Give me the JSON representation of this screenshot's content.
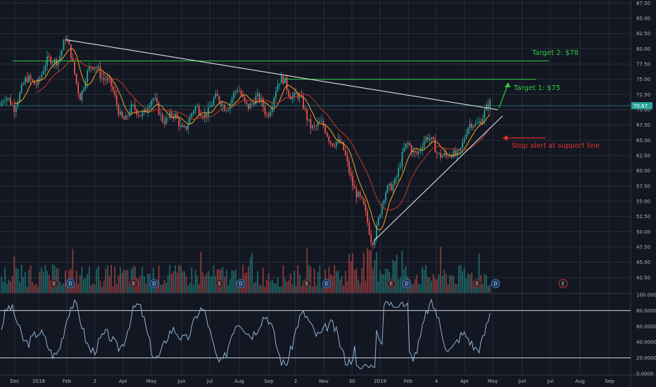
{
  "chart_data": {
    "type": "candlestick",
    "price_axis": {
      "range": [
        40.0,
        88.0
      ],
      "ticks": [
        "87.50",
        "85.00",
        "82.50",
        "80.00",
        "77.50",
        "75.00",
        "72.50",
        "70.00",
        "67.50",
        "65.00",
        "62.50",
        "60.00",
        "57.50",
        "55.00",
        "52.50",
        "50.00",
        "47.50",
        "45.00",
        "42.50"
      ],
      "last_price_label": "70.67",
      "last_price": 70.67
    },
    "x_axis": {
      "labels": [
        "Dec",
        "2018",
        "Feb",
        "2",
        "Apr",
        "May",
        "Jun",
        "Jul",
        "Aug",
        "Sep",
        "2",
        "Nov",
        "30",
        "2019",
        "Feb",
        "4",
        "Apr",
        "May",
        "Jun",
        "Jul",
        "Aug",
        "Sep"
      ]
    },
    "price_series": {
      "name": "",
      "x": [
        "2017-12",
        "2018-01-25",
        "2018-02-10",
        "2018-03-01",
        "2018-04-01",
        "2018-05-01",
        "2018-06-01",
        "2018-07-01",
        "2018-08-01",
        "2018-09-01",
        "2018-09-20",
        "2018-10-05",
        "2018-10-25",
        "2018-11-15",
        "2018-12-01",
        "2018-12-24",
        "2019-01-10",
        "2019-02-01",
        "2019-03-01",
        "2019-03-15",
        "2019-04-01",
        "2019-04-20",
        "2019-05-01"
      ],
      "close": [
        71.5,
        81.0,
        72.5,
        78.0,
        68.5,
        70.5,
        68.0,
        70.0,
        73.0,
        69.5,
        75.0,
        72.0,
        67.0,
        64.5,
        60.0,
        49.5,
        56.0,
        63.5,
        65.5,
        61.0,
        64.0,
        69.5,
        70.67
      ]
    },
    "indicator": {
      "axis_ticks": [
        "100.0000",
        "80.0000",
        "60.0000",
        "40.0000",
        "20.0000",
        "0.0000"
      ],
      "levels": [
        80,
        20
      ],
      "range": [
        0,
        100
      ]
    },
    "trendlines": [
      {
        "from": [
          "2018-01-25",
          81.5
        ],
        "to": [
          "2019-05-10",
          70.0
        ],
        "kind": "resistance"
      },
      {
        "from": [
          "2018-12-26",
          48.5
        ],
        "to": [
          "2019-05-15",
          69.0
        ],
        "kind": "support"
      }
    ],
    "horizontal_levels": [
      75.0,
      78.0
    ],
    "annotations": [
      {
        "text": "Target 2: $78",
        "color": "#2ecc40"
      },
      {
        "text": "Target 1: $75",
        "color": "#2ecc40"
      },
      {
        "text": "Stop alert at support line",
        "color": "#e0312d"
      }
    ],
    "earnings_markers": [
      "E",
      "D",
      "E",
      "D",
      "E",
      "D",
      "E",
      "D",
      "E",
      "D",
      "E",
      "D",
      "E"
    ],
    "colors": {
      "background": "#131722",
      "grid": "#2a2e39",
      "up": "#26a69a",
      "down": "#ef5350",
      "ma_fast": "#f5a623",
      "ma_slow": "#c0392b",
      "trendline": "#e0e0e0",
      "level": "#2ecc40",
      "stochastic": "#8fb4d8"
    }
  }
}
